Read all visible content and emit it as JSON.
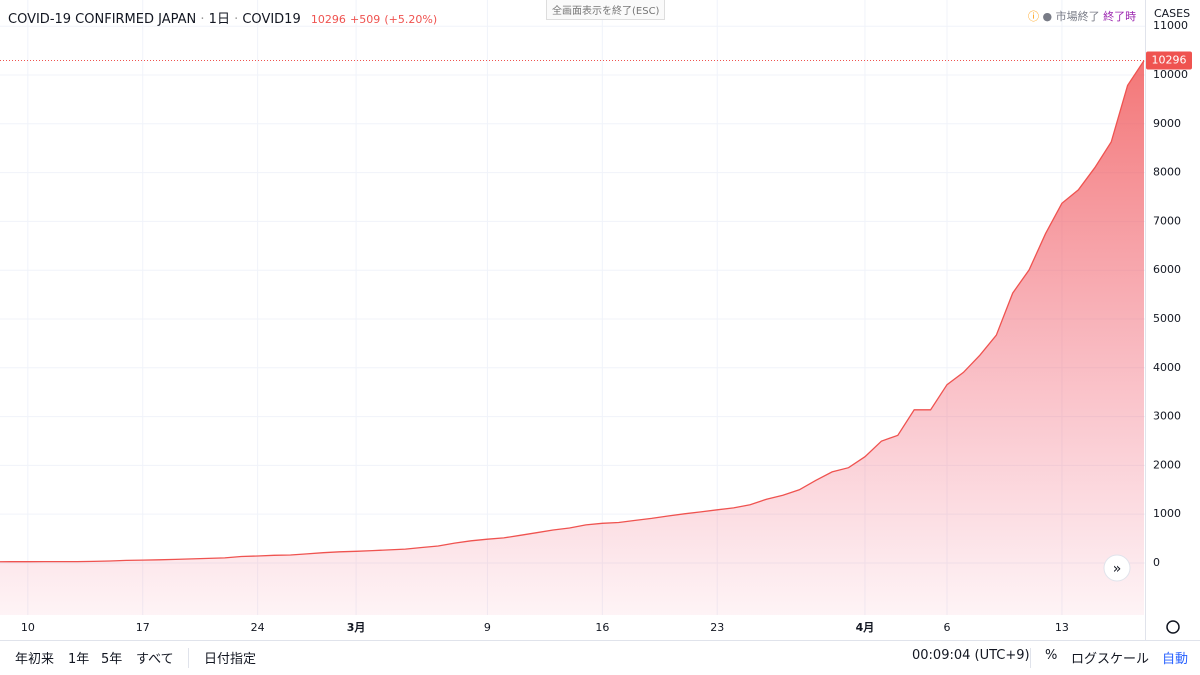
{
  "header": {
    "fullscreen_exit": "全画面表示を終了(ESC)",
    "market_status": "市場終了",
    "session": "終了時"
  },
  "toolbar": {
    "ranges": [
      "年初来",
      "1年",
      "5年",
      "すべて"
    ],
    "date_range": "日付指定",
    "clock": "00:09:04 (UTC+9)",
    "percent": "%",
    "log_scale": "ログスケール",
    "auto": "自動"
  },
  "chart_data": {
    "type": "area",
    "title": "COVID-19 CONFIRMED JAPAN",
    "interval": "1日",
    "symbol": "COVID19",
    "change": "+509",
    "change_pct": "(+5.20%)",
    "axis_label": "CASES",
    "x": [
      "02-08",
      "02-09",
      "02-10",
      "02-11",
      "02-12",
      "02-13",
      "02-14",
      "02-15",
      "02-16",
      "02-17",
      "02-18",
      "02-19",
      "02-20",
      "02-21",
      "02-22",
      "02-23",
      "02-24",
      "02-25",
      "02-26",
      "02-27",
      "02-28",
      "02-29",
      "03-01",
      "03-02",
      "03-03",
      "03-04",
      "03-05",
      "03-06",
      "03-07",
      "03-08",
      "03-09",
      "03-10",
      "03-11",
      "03-12",
      "03-13",
      "03-14",
      "03-15",
      "03-16",
      "03-17",
      "03-18",
      "03-19",
      "03-20",
      "03-21",
      "03-22",
      "03-23",
      "03-24",
      "03-25",
      "03-26",
      "03-27",
      "03-28",
      "03-29",
      "03-30",
      "03-31",
      "04-01",
      "04-02",
      "04-03",
      "04-04",
      "04-05",
      "04-06",
      "04-07",
      "04-08",
      "04-09",
      "04-10",
      "04-11",
      "04-12",
      "04-13",
      "04-14",
      "04-15",
      "04-16",
      "04-17",
      "04-18"
    ],
    "series": [
      {
        "color": "#ef5350",
        "values": [
          25,
          26,
          26,
          28,
          28,
          29,
          33,
          41,
          53,
          59,
          66,
          73,
          84,
          93,
          105,
          132,
          144,
          157,
          164,
          186,
          210,
          230,
          239,
          254,
          268,
          284,
          317,
          349,
          408,
          455,
          488,
          514,
          568,
          620,
          675,
          716,
          780,
          814,
          829,
          873,
          914,
          963,
          1007,
          1046,
          1089,
          1128,
          1193,
          1307,
          1387,
          1499,
          1693,
          1866,
          1953,
          2178,
          2495,
          2617,
          3139,
          3139,
          3654,
          3906,
          4257,
          4667,
          5530,
          6005,
          6748,
          7370,
          7645,
          8100,
          8626,
          9787,
          10296
        ]
      }
    ],
    "xticks": [
      {
        "value": "02-10",
        "label": "10"
      },
      {
        "value": "02-17",
        "label": "17"
      },
      {
        "value": "02-24",
        "label": "24"
      },
      {
        "value": "03-01",
        "label": "3月"
      },
      {
        "value": "03-09",
        "label": "9"
      },
      {
        "value": "03-16",
        "label": "16"
      },
      {
        "value": "03-23",
        "label": "23"
      },
      {
        "value": "04-01",
        "label": "4月"
      },
      {
        "value": "04-06",
        "label": "6"
      },
      {
        "value": "04-13",
        "label": "13"
      }
    ],
    "ylim": [
      -1066,
      11127
    ],
    "yticks": [
      0,
      1000,
      2000,
      3000,
      4000,
      5000,
      6000,
      7000,
      8000,
      9000,
      10000,
      11000
    ],
    "grid": true,
    "last_value_line": true
  }
}
